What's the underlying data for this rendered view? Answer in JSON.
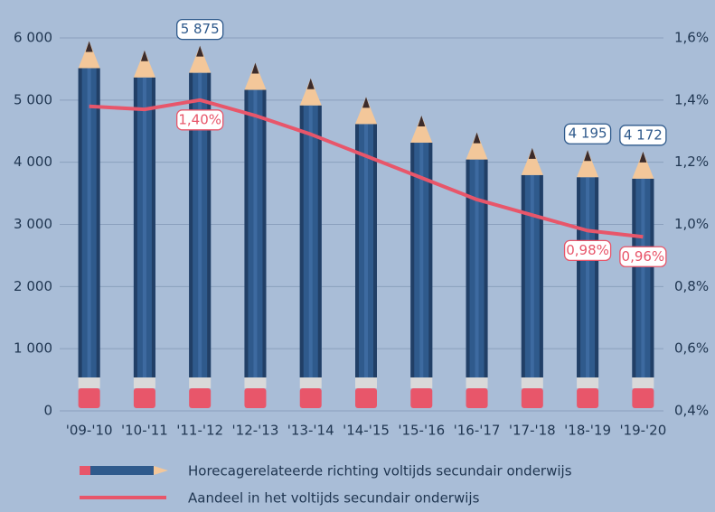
{
  "chart_data": {
    "type": "bar-line",
    "categories": [
      "'09-'10",
      "'10-'11",
      "'11-'12",
      "'12-'13",
      "'13-'14",
      "'14-'15",
      "'15-'16",
      "'16-'17",
      "'17-'18",
      "'18-'19",
      "'19-'20"
    ],
    "series": [
      {
        "name": "Horecagerelateerde richting voltijds secundair onderwijs",
        "type": "bar",
        "color": "#2f5a8c",
        "values": [
          5950,
          5800,
          5875,
          5600,
          5350,
          5050,
          4750,
          4480,
          4230,
          4195,
          4172
        ],
        "value_labels": [
          null,
          null,
          "5 875",
          null,
          null,
          null,
          null,
          null,
          null,
          "4 195",
          "4 172"
        ]
      },
      {
        "name": "Aandeel in het voltijds secundair onderwijs",
        "type": "line",
        "axis": "y2",
        "color": "#e8566a",
        "values": [
          1.38,
          1.37,
          1.4,
          1.35,
          1.29,
          1.22,
          1.15,
          1.08,
          1.03,
          0.98,
          0.96
        ],
        "value_labels": [
          null,
          null,
          "1,40%",
          null,
          null,
          null,
          null,
          null,
          null,
          "0,98%",
          "0,96%"
        ]
      }
    ],
    "ylim": [
      0,
      6000
    ],
    "yticks": [
      0,
      {
        "value": 1000,
        "label": "1 000"
      },
      {
        "value": 2000,
        "label": "2 000"
      },
      {
        "value": 3000,
        "label": "3 000"
      },
      {
        "value": 4000,
        "label": "4 000"
      },
      {
        "value": 5000,
        "label": "5 000"
      },
      {
        "value": 6000,
        "label": "6 000"
      }
    ],
    "y2lim": [
      0.4,
      1.6
    ],
    "y2ticks": [
      {
        "value": 0.4,
        "label": "0,4%"
      },
      {
        "value": 0.6,
        "label": "0,6%"
      },
      {
        "value": 0.8,
        "label": "0,8%"
      },
      {
        "value": 1.0,
        "label": "1,0%"
      },
      {
        "value": 1.2,
        "label": "1,2%"
      },
      {
        "value": 1.4,
        "label": "1,4%"
      },
      {
        "value": 1.6,
        "label": "1,6%"
      }
    ],
    "grid": true
  }
}
